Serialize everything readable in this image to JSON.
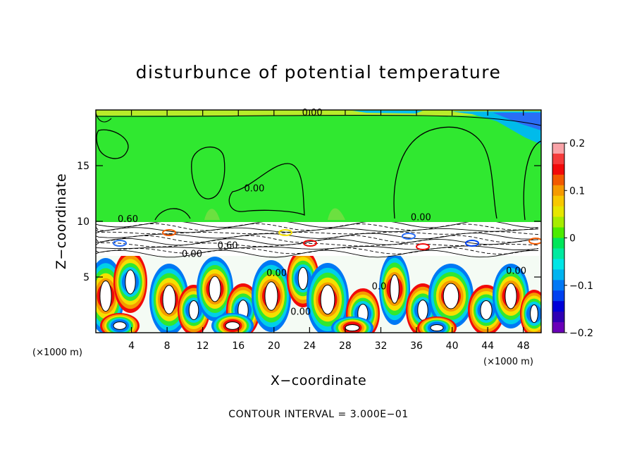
{
  "chart_data": {
    "type": "heatmap",
    "title": "disturbunce of potential temperature",
    "xlabel": "X−coordinate",
    "ylabel": "Z−coordinate",
    "x_unit": "(×1000 m)",
    "z_unit": "(×1000 m)",
    "xlim": [
      0,
      50
    ],
    "ylim": [
      0,
      20
    ],
    "x_ticks": [
      4,
      8,
      12,
      16,
      20,
      24,
      28,
      32,
      36,
      40,
      44,
      48
    ],
    "x_tick_labels": [
      "4",
      "8",
      "12",
      "16",
      "20",
      "24",
      "28",
      "32",
      "36",
      "40",
      "44",
      "48"
    ],
    "y_ticks": [
      5,
      10,
      15
    ],
    "y_tick_labels": [
      "5",
      "10",
      "15"
    ],
    "colorbar": {
      "range": [
        -0.2,
        0.2
      ],
      "ticks": [
        0.2,
        0.1,
        0,
        -0.1,
        -0.2
      ],
      "tick_labels": [
        "0.2",
        "0.1",
        "0",
        "−0.1",
        "−0.2"
      ],
      "colors": [
        "#f9a3a8",
        "#f53b3b",
        "#f20a0a",
        "#f25a00",
        "#f59a00",
        "#f7c800",
        "#e6e600",
        "#a6ec00",
        "#4ceb00",
        "#00e65a",
        "#00eaa0",
        "#00e6e6",
        "#00b4f0",
        "#0078f5",
        "#0040f0",
        "#0000d8",
        "#3000b4",
        "#6a00b8"
      ]
    },
    "contour_labels": [
      {
        "text": "0.00",
        "x": 24.3,
        "z": 19.5
      },
      {
        "text": "0.00",
        "x": 17.8,
        "z": 12.7
      },
      {
        "text": "0.60",
        "x": 3.6,
        "z": 9.95
      },
      {
        "text": "0.00",
        "x": 36.5,
        "z": 10.1
      },
      {
        "text": "0.60",
        "x": 14.8,
        "z": 7.55
      },
      {
        "text": "0.00",
        "x": 10.8,
        "z": 6.8
      },
      {
        "text": "0.00",
        "x": 20.3,
        "z": 5.1
      },
      {
        "text": "0.00",
        "x": 23.0,
        "z": 1.6
      },
      {
        "text": "0.0",
        "x": 31.8,
        "z": 3.9
      },
      {
        "text": "0.00",
        "x": 47.2,
        "z": 5.3
      }
    ],
    "contour_interval_label": "CONTOUR INTERVAL = 3.000E−01",
    "grid": false
  }
}
